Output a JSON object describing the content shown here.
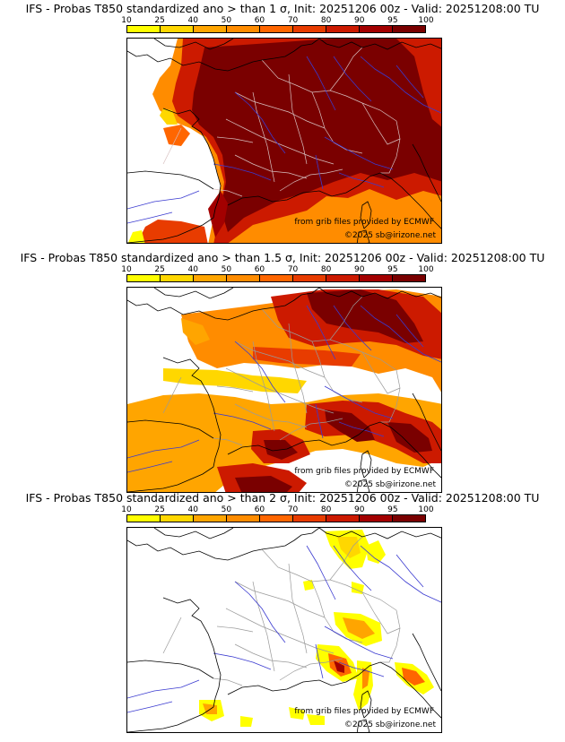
{
  "panels": [
    {
      "title": "IFS - Probas T850  standardized ano > than 1 σ, Init: 20251206 00z - Valid: 20251208:00 TU",
      "threshold_sigma": 1,
      "coverage": "high"
    },
    {
      "title": "IFS - Probas T850  standardized ano > than 1.5 σ, Init: 20251206 00z - Valid: 20251208:00 TU",
      "threshold_sigma": 1.5,
      "coverage": "medium"
    },
    {
      "title": "IFS - Probas T850  standardized ano > than 2 σ, Init: 20251206 00z - Valid: 20251208:00 TU",
      "threshold_sigma": 2,
      "coverage": "low"
    }
  ],
  "scale": {
    "labels": [
      "10",
      "25",
      "40",
      "50",
      "60",
      "70",
      "80",
      "90",
      "95",
      "100"
    ],
    "colors": [
      "#ffff00",
      "#ffd700",
      "#ffa500",
      "#ff8c00",
      "#ff6600",
      "#e83c00",
      "#cc1a00",
      "#a30000",
      "#7a0000"
    ]
  },
  "credits": {
    "grib": "from grib files provided by ECMWF",
    "copyright": "©2025 sb@irizone.net"
  },
  "map_colors": {
    "coast": "#000000",
    "borders": "#9a9a9a",
    "rivers": "#3a3ad0"
  }
}
